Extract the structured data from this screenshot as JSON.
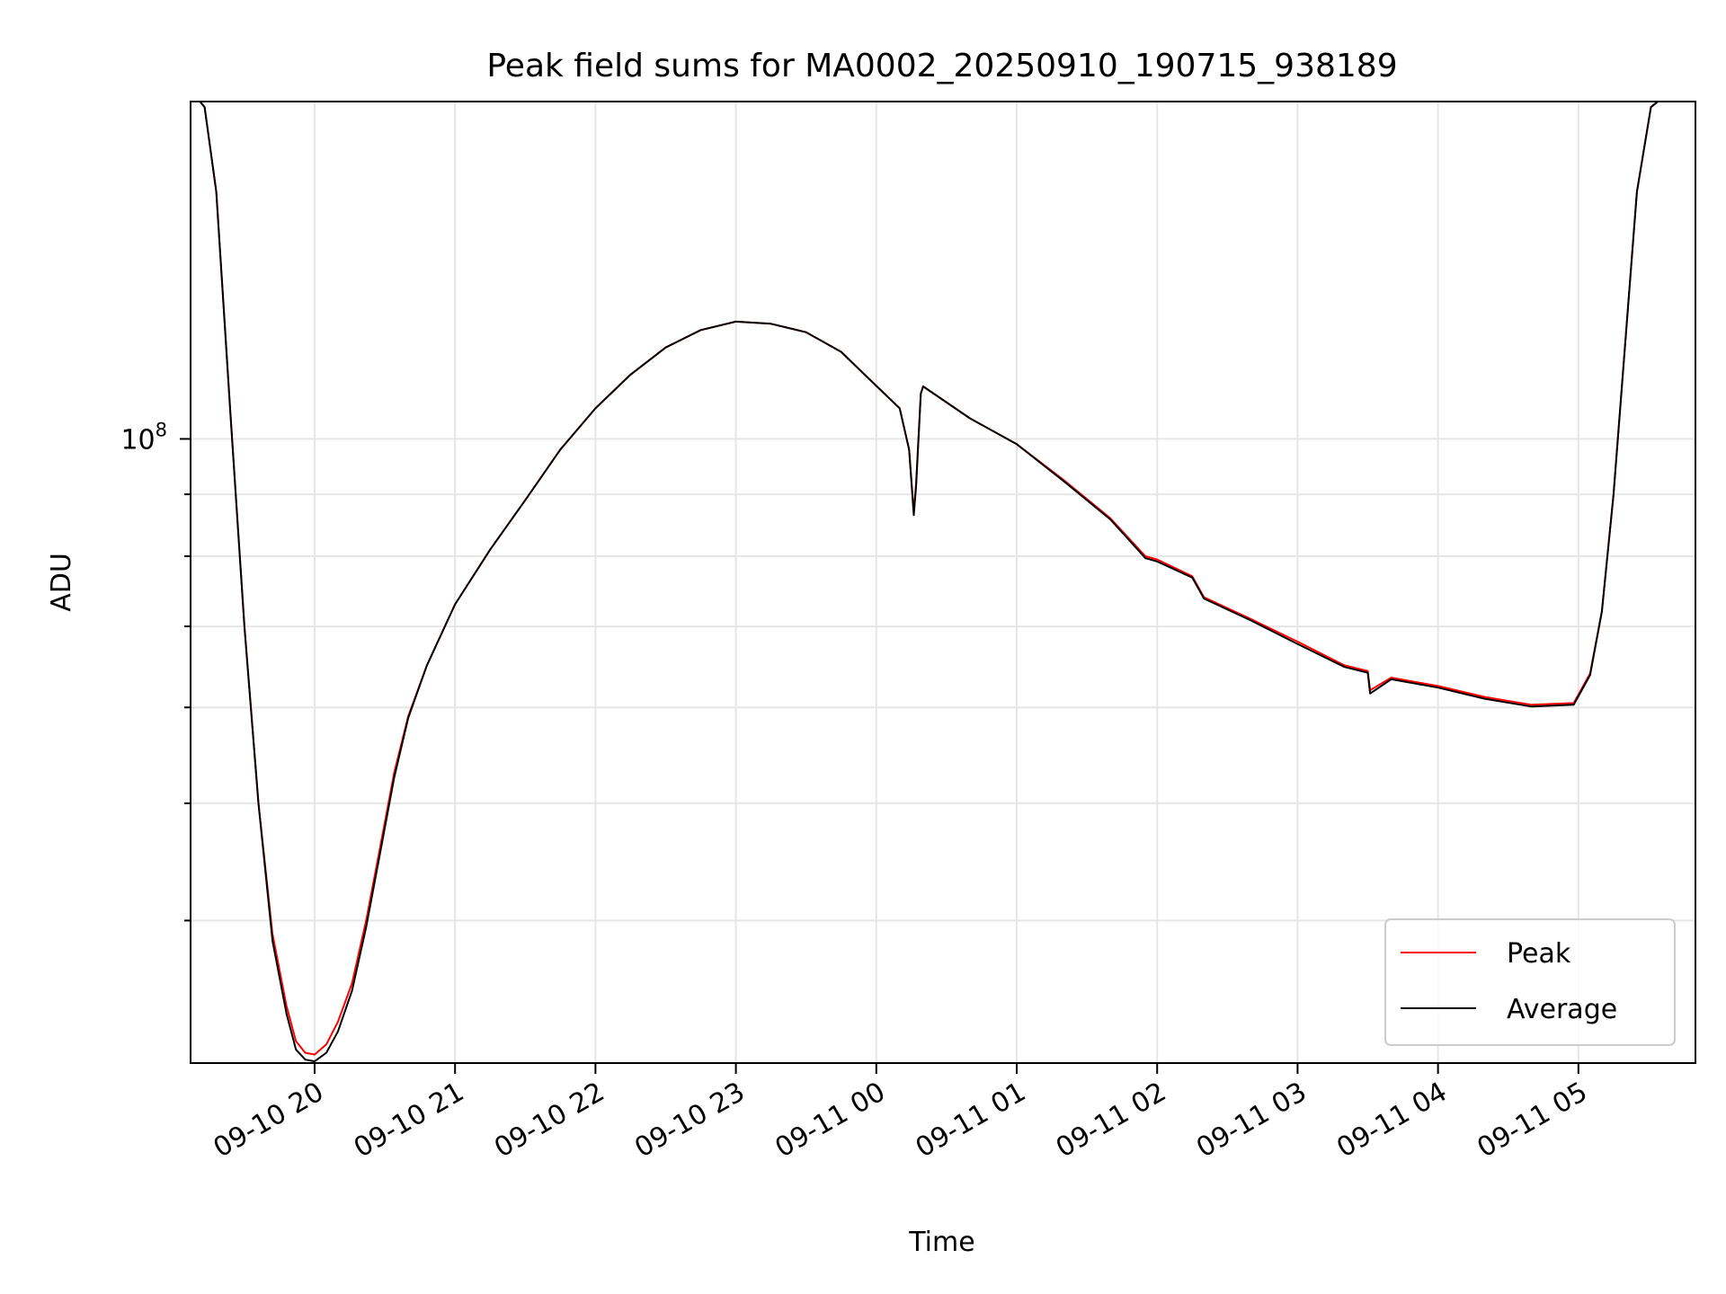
{
  "chart_data": {
    "type": "line",
    "title": "Peak field sums for MA0002_20250910_190715_938189",
    "xlabel": "Time",
    "ylabel": "ADU",
    "y_scale": "log",
    "grid": true,
    "legend_position": "lower-right",
    "xlim": [
      "2025-09-10 19:07",
      "2025-09-11 05:50"
    ],
    "ylim": [
      30500000,
      190000000
    ],
    "x_ticks": [
      {
        "time": "2025-09-10 20:00",
        "label": "09-10 20"
      },
      {
        "time": "2025-09-10 21:00",
        "label": "09-10 21"
      },
      {
        "time": "2025-09-10 22:00",
        "label": "09-10 22"
      },
      {
        "time": "2025-09-10 23:00",
        "label": "09-10 23"
      },
      {
        "time": "2025-09-11 00:00",
        "label": "09-11 00"
      },
      {
        "time": "2025-09-11 01:00",
        "label": "09-11 01"
      },
      {
        "time": "2025-09-11 02:00",
        "label": "09-11 02"
      },
      {
        "time": "2025-09-11 03:00",
        "label": "09-11 03"
      },
      {
        "time": "2025-09-11 04:00",
        "label": "09-11 04"
      },
      {
        "time": "2025-09-11 05:00",
        "label": "09-11 05"
      }
    ],
    "y_major_ticks": [
      {
        "value": 100000000,
        "base": "10",
        "exponent": "8"
      }
    ],
    "y_minor_ticks": [
      30000000,
      40000000,
      50000000,
      60000000,
      70000000,
      80000000,
      90000000,
      200000000
    ],
    "series": [
      {
        "name": "Peak",
        "color": "#ff0000",
        "points": [
          [
            "2025-09-10 19:11",
            190000000
          ],
          [
            "2025-09-10 19:13",
            188000000
          ],
          [
            "2025-09-10 19:18",
            160000000
          ],
          [
            "2025-09-10 19:24",
            105000000
          ],
          [
            "2025-09-10 19:30",
            70000000
          ],
          [
            "2025-09-10 19:36",
            50000000
          ],
          [
            "2025-09-10 19:42",
            39000000
          ],
          [
            "2025-09-10 19:48",
            34000000
          ],
          [
            "2025-09-10 19:52",
            31800000
          ],
          [
            "2025-09-10 19:56",
            31100000
          ],
          [
            "2025-09-10 20:00",
            31000000
          ],
          [
            "2025-09-10 20:05",
            31600000
          ],
          [
            "2025-09-10 20:10",
            33000000
          ],
          [
            "2025-09-10 20:16",
            35500000
          ],
          [
            "2025-09-10 20:22",
            40000000
          ],
          [
            "2025-09-10 20:28",
            46000000
          ],
          [
            "2025-09-10 20:34",
            53000000
          ],
          [
            "2025-09-10 20:40",
            59000000
          ],
          [
            "2025-09-10 20:48",
            65000000
          ],
          [
            "2025-09-10 21:00",
            73000000
          ],
          [
            "2025-09-10 21:15",
            81000000
          ],
          [
            "2025-09-10 21:30",
            89000000
          ],
          [
            "2025-09-10 21:45",
            98000000
          ],
          [
            "2025-09-10 22:00",
            106000000
          ],
          [
            "2025-09-10 22:15",
            113000000
          ],
          [
            "2025-09-10 22:30",
            119000000
          ],
          [
            "2025-09-10 22:45",
            123000000
          ],
          [
            "2025-09-10 23:00",
            125000000
          ],
          [
            "2025-09-10 23:15",
            124500000
          ],
          [
            "2025-09-10 23:30",
            122500000
          ],
          [
            "2025-09-10 23:45",
            118000000
          ],
          [
            "2025-09-10 23:55",
            113000000
          ],
          [
            "2025-09-11 00:10",
            106000000
          ],
          [
            "2025-09-11 00:14",
            98000000
          ],
          [
            "2025-09-11 00:16",
            87000000
          ],
          [
            "2025-09-11 00:17",
            92000000
          ],
          [
            "2025-09-11 00:19",
            109000000
          ],
          [
            "2025-09-11 00:20",
            110500000
          ],
          [
            "2025-09-11 00:40",
            104000000
          ],
          [
            "2025-09-11 01:00",
            99000000
          ],
          [
            "2025-09-11 01:20",
            92500000
          ],
          [
            "2025-09-11 01:40",
            86000000
          ],
          [
            "2025-09-11 01:55",
            80000000
          ],
          [
            "2025-09-11 02:00",
            79500000
          ],
          [
            "2025-09-11 02:15",
            77000000
          ],
          [
            "2025-09-11 02:20",
            74000000
          ],
          [
            "2025-09-11 02:40",
            71000000
          ],
          [
            "2025-09-11 03:00",
            68000000
          ],
          [
            "2025-09-11 03:20",
            65000000
          ],
          [
            "2025-09-11 03:30",
            64300000
          ],
          [
            "2025-09-11 03:31",
            62000000
          ],
          [
            "2025-09-11 03:40",
            63500000
          ],
          [
            "2025-09-11 04:00",
            62500000
          ],
          [
            "2025-09-11 04:20",
            61200000
          ],
          [
            "2025-09-11 04:40",
            60300000
          ],
          [
            "2025-09-11 04:58",
            60500000
          ],
          [
            "2025-09-11 05:05",
            64000000
          ],
          [
            "2025-09-11 05:10",
            72000000
          ],
          [
            "2025-09-11 05:15",
            90000000
          ],
          [
            "2025-09-11 05:20",
            120000000
          ],
          [
            "2025-09-11 05:25",
            160000000
          ],
          [
            "2025-09-11 05:31",
            188000000
          ],
          [
            "2025-09-11 05:34",
            190000000
          ],
          [
            "2025-09-11 05:50",
            190000000
          ]
        ]
      },
      {
        "name": "Average",
        "color": "#000000",
        "points": [
          [
            "2025-09-10 19:11",
            190000000
          ],
          [
            "2025-09-10 19:13",
            188000000
          ],
          [
            "2025-09-10 19:18",
            160000000
          ],
          [
            "2025-09-10 19:24",
            105000000
          ],
          [
            "2025-09-10 19:30",
            70000000
          ],
          [
            "2025-09-10 19:36",
            50000000
          ],
          [
            "2025-09-10 19:42",
            38500000
          ],
          [
            "2025-09-10 19:48",
            33500000
          ],
          [
            "2025-09-10 19:52",
            31300000
          ],
          [
            "2025-09-10 19:56",
            30700000
          ],
          [
            "2025-09-10 20:00",
            30600000
          ],
          [
            "2025-09-10 20:05",
            31100000
          ],
          [
            "2025-09-10 20:10",
            32400000
          ],
          [
            "2025-09-10 20:16",
            35000000
          ],
          [
            "2025-09-10 20:22",
            39500000
          ],
          [
            "2025-09-10 20:28",
            45500000
          ],
          [
            "2025-09-10 20:34",
            52500000
          ],
          [
            "2025-09-10 20:40",
            58800000
          ],
          [
            "2025-09-10 20:48",
            65000000
          ],
          [
            "2025-09-10 21:00",
            73000000
          ],
          [
            "2025-09-10 21:15",
            81000000
          ],
          [
            "2025-09-10 21:30",
            89000000
          ],
          [
            "2025-09-10 21:45",
            98000000
          ],
          [
            "2025-09-10 22:00",
            106000000
          ],
          [
            "2025-09-10 22:15",
            113000000
          ],
          [
            "2025-09-10 22:30",
            119000000
          ],
          [
            "2025-09-10 22:45",
            123000000
          ],
          [
            "2025-09-10 23:00",
            125000000
          ],
          [
            "2025-09-10 23:15",
            124500000
          ],
          [
            "2025-09-10 23:30",
            122500000
          ],
          [
            "2025-09-10 23:45",
            118000000
          ],
          [
            "2025-09-10 23:55",
            113000000
          ],
          [
            "2025-09-11 00:10",
            106000000
          ],
          [
            "2025-09-11 00:14",
            98000000
          ],
          [
            "2025-09-11 00:16",
            86500000
          ],
          [
            "2025-09-11 00:17",
            91500000
          ],
          [
            "2025-09-11 00:19",
            109000000
          ],
          [
            "2025-09-11 00:20",
            110500000
          ],
          [
            "2025-09-11 00:40",
            104000000
          ],
          [
            "2025-09-11 01:00",
            99000000
          ],
          [
            "2025-09-11 01:20",
            92300000
          ],
          [
            "2025-09-11 01:40",
            85800000
          ],
          [
            "2025-09-11 01:55",
            79700000
          ],
          [
            "2025-09-11 02:00",
            79200000
          ],
          [
            "2025-09-11 02:15",
            76800000
          ],
          [
            "2025-09-11 02:20",
            73800000
          ],
          [
            "2025-09-11 02:40",
            70800000
          ],
          [
            "2025-09-11 03:00",
            67700000
          ],
          [
            "2025-09-11 03:20",
            64800000
          ],
          [
            "2025-09-11 03:30",
            64100000
          ],
          [
            "2025-09-11 03:31",
            61600000
          ],
          [
            "2025-09-11 03:40",
            63300000
          ],
          [
            "2025-09-11 04:00",
            62300000
          ],
          [
            "2025-09-11 04:20",
            61000000
          ],
          [
            "2025-09-11 04:40",
            60100000
          ],
          [
            "2025-09-11 04:58",
            60300000
          ],
          [
            "2025-09-11 05:05",
            63800000
          ],
          [
            "2025-09-11 05:10",
            72000000
          ],
          [
            "2025-09-11 05:15",
            90000000
          ],
          [
            "2025-09-11 05:20",
            120000000
          ],
          [
            "2025-09-11 05:25",
            160000000
          ],
          [
            "2025-09-11 05:31",
            188000000
          ],
          [
            "2025-09-11 05:34",
            190000000
          ],
          [
            "2025-09-11 05:50",
            190000000
          ]
        ]
      }
    ]
  }
}
